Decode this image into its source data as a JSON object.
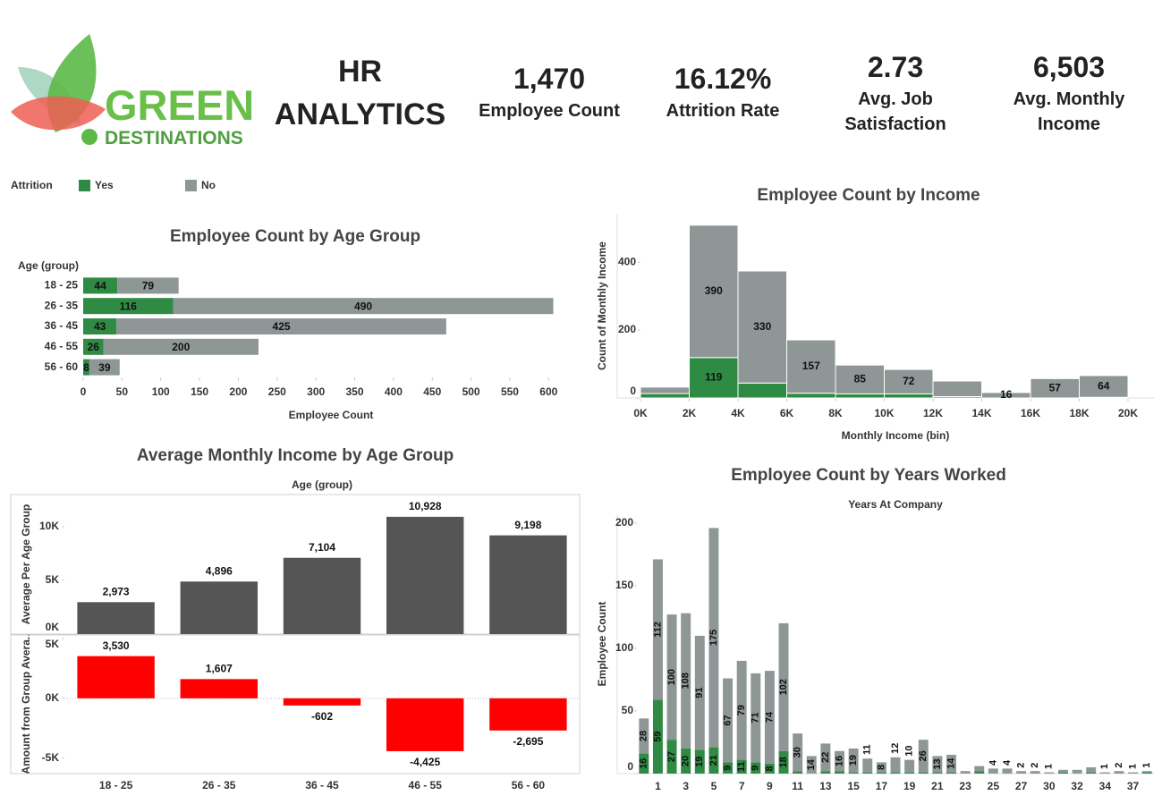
{
  "header": {
    "logo": [
      "GREEN",
      "DESTINATIONS"
    ],
    "title": "HR ANALYTICS"
  },
  "kpis": [
    {
      "value": "1,470",
      "label": "Employee Count"
    },
    {
      "value": "16.12%",
      "label": "Attrition Rate"
    },
    {
      "value": "2.73",
      "label": "Avg. Job Satisfaction"
    },
    {
      "value": "6,503",
      "label": "Avg. Monthly Income"
    }
  ],
  "chart_data": [
    {
      "type": "hbar",
      "stacked": true,
      "title": "Employee Count by Age Group",
      "ylabel": "Age (group)",
      "xlabel": "Employee Count",
      "legend_title": "Attrition",
      "categories": [
        "18 - 25",
        "26 - 35",
        "36 - 45",
        "46 - 55",
        "56 - 60"
      ],
      "series": [
        {
          "name": "Yes",
          "color": "#2f8a44",
          "values": [
            44,
            116,
            43,
            26,
            8
          ]
        },
        {
          "name": "No",
          "color": "#8e9696",
          "values": [
            79,
            490,
            425,
            200,
            39
          ]
        }
      ],
      "xlim": [
        0,
        640
      ],
      "xticks": [
        0,
        50,
        100,
        150,
        200,
        250,
        300,
        350,
        400,
        450,
        500,
        550,
        600
      ]
    },
    {
      "type": "histogram",
      "stacked": true,
      "title": "Employee Count by Income",
      "xlabel": "Monthly Income (bin)",
      "ylabel": "Count of Monthly Income",
      "bins": [
        0,
        2000,
        4000,
        6000,
        8000,
        10000,
        12000,
        14000,
        16000,
        18000,
        20000
      ],
      "series": [
        {
          "name": "Yes",
          "color": "#2f8a44",
          "values": [
            13,
            119,
            44,
            14,
            12,
            12,
            4,
            0,
            0,
            2
          ],
          "value_labels": [
            null,
            "119",
            null,
            null,
            null,
            null,
            null,
            null,
            null,
            null
          ]
        },
        {
          "name": "No",
          "color": "#8e9696",
          "values": [
            19,
            390,
            330,
            157,
            85,
            72,
            46,
            16,
            57,
            64
          ],
          "value_labels": [
            null,
            "390",
            "330",
            "157",
            "85",
            "72",
            null,
            "16",
            "57",
            "64"
          ]
        }
      ],
      "xticks": [
        {
          "value": 0,
          "label": "0K"
        },
        {
          "value": 2000,
          "label": "2K"
        },
        {
          "value": 4000,
          "label": "4K"
        },
        {
          "value": 6000,
          "label": "6K"
        },
        {
          "value": 8000,
          "label": "8K"
        },
        {
          "value": 10000,
          "label": "10K"
        },
        {
          "value": 12000,
          "label": "12K"
        },
        {
          "value": 14000,
          "label": "14K"
        },
        {
          "value": 16000,
          "label": "16K"
        },
        {
          "value": 18000,
          "label": "18K"
        },
        {
          "value": 20000,
          "label": "20K"
        }
      ],
      "ylim": [
        0,
        540
      ],
      "yticks": [
        0,
        200,
        400
      ]
    },
    {
      "type": "bar",
      "title": "Average Monthly Income by Age Group",
      "xlabel": "Age (group)",
      "ylabel": "Average Per Age Group",
      "values": [
        2973,
        4896,
        7104,
        10928,
        9198
      ],
      "value_labels": [
        "2,973",
        "4,896",
        "7,104",
        "10,928",
        "9,198"
      ],
      "color": "#555555",
      "ylim": [
        0,
        13000
      ],
      "yticks": [
        {
          "value": 0,
          "label": "0K"
        },
        {
          "value": 5000,
          "label": "5K"
        },
        {
          "value": 10000,
          "label": "10K"
        }
      ]
    },
    {
      "type": "bar",
      "ylabel": "Amount from Group Avera..",
      "categories": [
        "18 - 25",
        "26 - 35",
        "36 - 45",
        "46 - 55",
        "56 - 60"
      ],
      "values": [
        3530,
        1607,
        -602,
        -4425,
        -2695
      ],
      "value_labels": [
        "3,530",
        "1,607",
        "-602",
        "-4,425",
        "-2,695"
      ],
      "color": "#ff0000",
      "ylim": [
        -6300,
        5300
      ],
      "yticks": [
        {
          "value": -5000,
          "label": "-5K"
        },
        {
          "value": 0,
          "label": "0K"
        },
        {
          "value": 5000,
          "label": "5K"
        }
      ]
    },
    {
      "type": "bar",
      "stacked": true,
      "title": "Employee Count by Years Worked",
      "xlabel": "Years At Company",
      "ylabel": "Employee Count",
      "categories": [
        null,
        "1",
        null,
        "3",
        null,
        "5",
        null,
        "7",
        null,
        "9",
        null,
        "11",
        null,
        "13",
        null,
        "15",
        null,
        "17",
        null,
        "19",
        null,
        "21",
        null,
        "23",
        null,
        "25",
        null,
        "27",
        null,
        "30",
        null,
        "32",
        null,
        "34",
        null,
        "37",
        null
      ],
      "series": [
        {
          "name": "Yes",
          "color": "#2f8a44",
          "values": [
            16,
            59,
            27,
            20,
            19,
            21,
            9,
            11,
            9,
            8,
            18,
            2,
            0,
            2,
            2,
            1,
            1,
            1,
            1,
            1,
            1,
            1,
            1,
            0,
            2,
            0,
            0,
            0,
            0,
            0,
            1,
            0,
            1,
            0,
            0,
            0,
            1
          ],
          "value_labels": [
            "16",
            "59",
            "27",
            "20",
            "19",
            "21",
            "9",
            "11",
            "9",
            "8",
            "18",
            null,
            null,
            null,
            null,
            null,
            null,
            null,
            null,
            null,
            null,
            null,
            null,
            null,
            null,
            null,
            null,
            null,
            null,
            null,
            null,
            null,
            null,
            null,
            null,
            null,
            null
          ]
        },
        {
          "name": "No",
          "color": "#8e9696",
          "values": [
            28,
            112,
            100,
            108,
            91,
            175,
            67,
            79,
            71,
            74,
            102,
            30,
            14,
            22,
            16,
            19,
            11,
            8,
            12,
            10,
            26,
            13,
            14,
            2,
            4,
            4,
            4,
            2,
            2,
            1,
            2,
            3,
            4,
            1,
            2,
            1,
            1
          ],
          "value_labels": [
            "28",
            "112",
            "100",
            "108",
            "91",
            "175",
            "67",
            "79",
            "71",
            "74",
            "102",
            "30",
            "14",
            "22",
            "16",
            "19",
            "11",
            "8",
            "12",
            "10",
            "26",
            "13",
            "14",
            null,
            null,
            "4",
            "4",
            "2",
            "2",
            "1",
            null,
            null,
            null,
            "1",
            "2",
            "1",
            "1"
          ]
        }
      ],
      "ylim": [
        0,
        207
      ],
      "yticks": [
        0,
        50,
        100,
        150,
        200
      ]
    }
  ]
}
